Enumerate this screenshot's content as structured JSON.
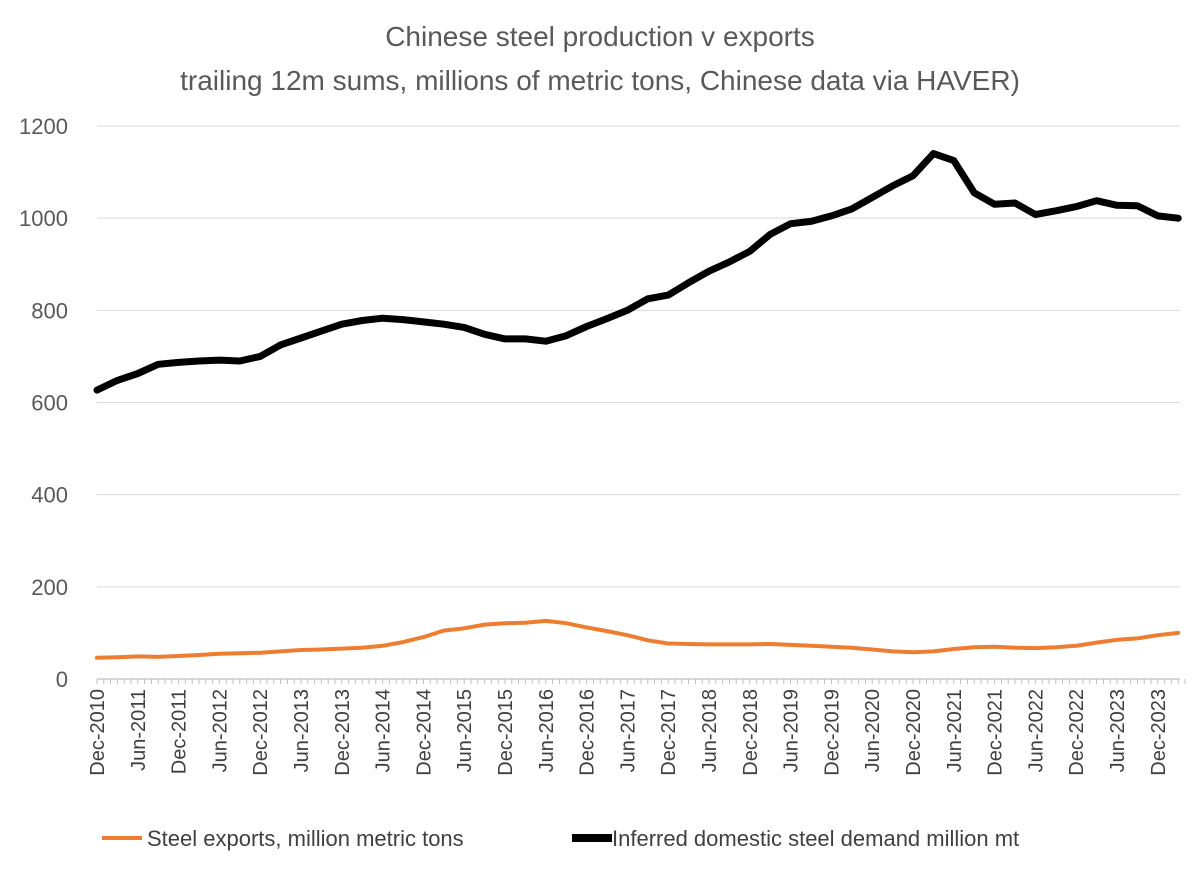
{
  "chart_data": {
    "type": "line",
    "title": "Chinese steel production v exports",
    "subtitle": "trailing 12m sums, millions of metric tons, Chinese data via HAVER)",
    "xlabel": "",
    "ylabel": "",
    "ylim": [
      0,
      1200
    ],
    "yticks": [
      "0",
      "200",
      "400",
      "600",
      "800",
      "1000",
      "1200"
    ],
    "grid": "horizontal",
    "legend_position": "bottom",
    "x_tick_labels": [
      "Dec-2010",
      "Jun-2011",
      "Dec-2011",
      "Jun-2012",
      "Dec-2012",
      "Jun-2013",
      "Dec-2013",
      "Jun-2014",
      "Dec-2014",
      "Jun-2015",
      "Dec-2015",
      "Jun-2016",
      "Dec-2016",
      "Jun-2017",
      "Dec-2017",
      "Jun-2018",
      "Dec-2018",
      "Jun-2019",
      "Dec-2019",
      "Jun-2020",
      "Dec-2020",
      "Jun-2021",
      "Dec-2021",
      "Jun-2022",
      "Dec-2022",
      "Jun-2023",
      "Dec-2023"
    ],
    "x_dates": [
      "2010-12",
      "2011-03",
      "2011-06",
      "2011-09",
      "2011-12",
      "2012-03",
      "2012-06",
      "2012-09",
      "2012-12",
      "2013-03",
      "2013-06",
      "2013-09",
      "2013-12",
      "2014-03",
      "2014-06",
      "2014-09",
      "2014-12",
      "2015-03",
      "2015-06",
      "2015-09",
      "2015-12",
      "2016-03",
      "2016-06",
      "2016-09",
      "2016-12",
      "2017-03",
      "2017-06",
      "2017-09",
      "2017-12",
      "2018-03",
      "2018-06",
      "2018-09",
      "2018-12",
      "2019-03",
      "2019-06",
      "2019-09",
      "2019-12",
      "2020-03",
      "2020-06",
      "2020-09",
      "2020-12",
      "2021-03",
      "2021-06",
      "2021-09",
      "2021-12",
      "2022-03",
      "2022-06",
      "2022-09",
      "2022-12",
      "2023-03",
      "2023-06",
      "2023-09",
      "2023-12",
      "2024-03"
    ],
    "series": [
      {
        "name": "Steel exports, million metric tons",
        "color": "#ED7D31",
        "values": [
          46,
          47,
          49,
          48,
          50,
          52,
          55,
          56,
          57,
          60,
          63,
          64,
          66,
          68,
          72,
          80,
          91,
          105,
          110,
          118,
          121,
          122,
          126,
          121,
          112,
          104,
          95,
          84,
          77,
          76,
          75,
          75,
          75,
          76,
          74,
          72,
          70,
          68,
          64,
          60,
          58,
          60,
          65,
          69,
          70,
          68,
          67,
          69,
          72,
          79,
          85,
          88,
          95,
          100
        ]
      },
      {
        "name": "Inferred domestic steel demand million mt",
        "color": "#000000",
        "values": [
          627,
          648,
          663,
          683,
          687,
          690,
          692,
          690,
          700,
          725,
          740,
          755,
          770,
          778,
          783,
          780,
          775,
          770,
          763,
          748,
          738,
          738,
          733,
          745,
          765,
          782,
          800,
          825,
          833,
          860,
          885,
          905,
          928,
          965,
          988,
          993,
          1005,
          1020,
          1045,
          1070,
          1092,
          1140,
          1125,
          1055,
          1030,
          1033,
          1008,
          1016,
          1025,
          1038,
          1028,
          1027,
          1005,
          1000
        ]
      }
    ]
  }
}
